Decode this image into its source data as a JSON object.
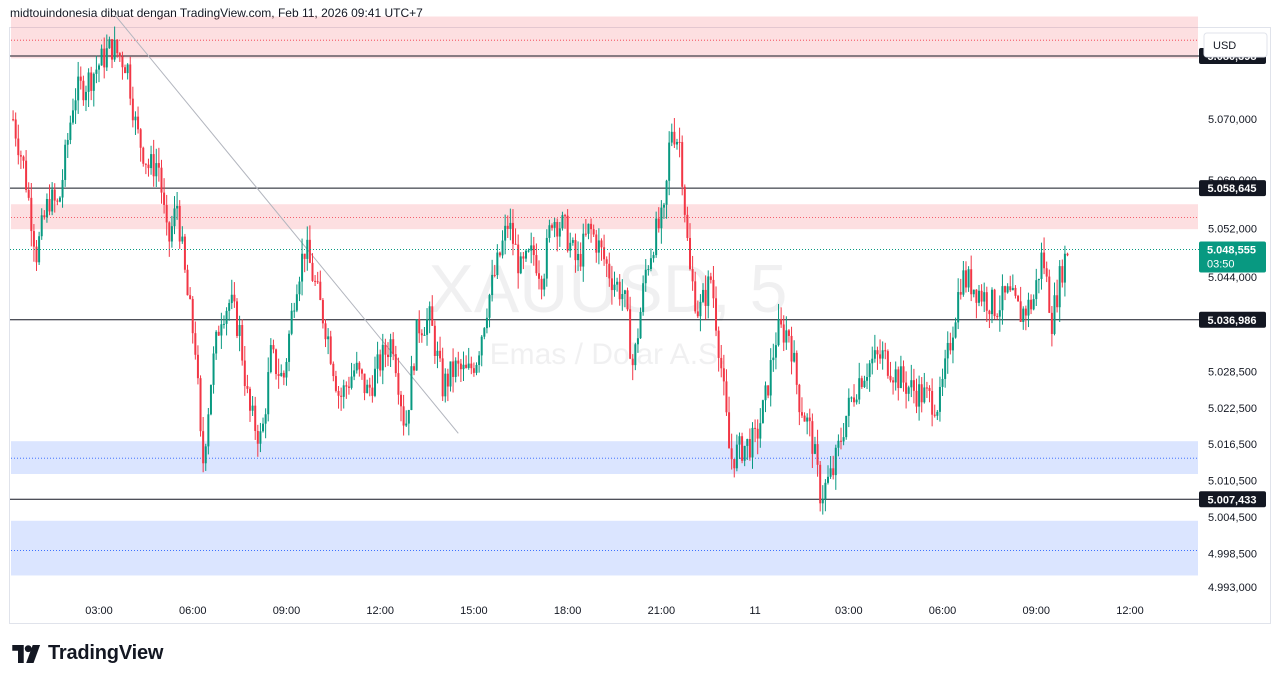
{
  "header": {
    "caption": "midtouindonesia dibuat dengan TradingView.com, Feb 11, 2026 09:41 UTC+7"
  },
  "watermark": {
    "symbol": "XAUUSD, 5",
    "description": "Emas / Dolar A.S."
  },
  "brand": {
    "name": "TradingView"
  },
  "colors": {
    "up": "#089981",
    "down": "#f23645",
    "supply_zone": "#f23645",
    "demand_zone": "#2962ff",
    "current_price_bg": "#089981"
  },
  "chart_data": {
    "type": "candlestick",
    "symbol": "XAUUSD",
    "timeframe": "5",
    "currency": "USD",
    "y_range": [
      4990.0,
      5093.0
    ],
    "y_ticks": [
      {
        "value": 5070.0,
        "label": "5.070,000"
      },
      {
        "value": 5060.0,
        "label": "5.060,000"
      },
      {
        "value": 5052.0,
        "label": "5.052,000"
      },
      {
        "value": 5044.0,
        "label": "5.044,000"
      },
      {
        "value": 5028.5,
        "label": "5.028,500"
      },
      {
        "value": 5022.5,
        "label": "5.022,500"
      },
      {
        "value": 5016.5,
        "label": "5.016,500"
      },
      {
        "value": 5010.5,
        "label": "5.010,500"
      },
      {
        "value": 5004.5,
        "label": "5.004,500"
      },
      {
        "value": 4998.5,
        "label": "4.998,500"
      },
      {
        "value": 4993.0,
        "label": "4.993,000"
      }
    ],
    "x_ticks": [
      {
        "hour": 3,
        "label": "03:00"
      },
      {
        "hour": 6,
        "label": "06:00"
      },
      {
        "hour": 9,
        "label": "09:00"
      },
      {
        "hour": 12,
        "label": "12:00"
      },
      {
        "hour": 15,
        "label": "15:00"
      },
      {
        "hour": 18,
        "label": "18:00"
      },
      {
        "hour": 21,
        "label": "21:00"
      },
      {
        "hour": 24,
        "label": "11"
      },
      {
        "hour": 27,
        "label": "03:00"
      },
      {
        "hour": 30,
        "label": "06:00"
      },
      {
        "hour": 33,
        "label": "09:00"
      },
      {
        "hour": 36,
        "label": "12:00"
      }
    ],
    "x_range_hours": [
      0.25,
      36.5
    ],
    "horizontal_levels": [
      {
        "value": 5080.398,
        "label": "5.080,398"
      },
      {
        "value": 5058.645,
        "label": "5.058,645"
      },
      {
        "value": 5036.986,
        "label": "5.036,986"
      },
      {
        "value": 5007.433,
        "label": "5.007,433"
      }
    ],
    "current_price": {
      "value": 5048.555,
      "label": "5.048,555",
      "countdown": "03:50"
    },
    "zones": [
      {
        "kind": "supply",
        "from": 5080.0,
        "to": 5086.9,
        "mid": 5083.0
      },
      {
        "kind": "supply",
        "from": 5051.9,
        "to": 5056.0,
        "mid": 5053.8
      },
      {
        "kind": "demand",
        "from": 5011.6,
        "to": 5017.0,
        "mid": 5014.2
      },
      {
        "kind": "demand",
        "from": 4994.9,
        "to": 5003.9,
        "mid": 4999.0
      }
    ],
    "trendline": {
      "from": {
        "hour": 3.5,
        "price": 5087.2
      },
      "to": {
        "hour": 14.5,
        "price": 5018.3
      }
    },
    "path": [
      [
        0.25,
        5070.0
      ],
      [
        0.6,
        5062.0
      ],
      [
        1.0,
        5048.0
      ],
      [
        1.4,
        5057.0
      ],
      [
        1.7,
        5055.5
      ],
      [
        2.2,
        5074.0
      ],
      [
        2.6,
        5076.0
      ],
      [
        3.0,
        5079.0
      ],
      [
        3.4,
        5082.0
      ],
      [
        3.9,
        5079.0
      ],
      [
        4.2,
        5068.0
      ],
      [
        4.6,
        5062.0
      ],
      [
        4.9,
        5063.0
      ],
      [
        5.2,
        5049.0
      ],
      [
        5.5,
        5056.0
      ],
      [
        5.8,
        5042.0
      ],
      [
        6.1,
        5032.0
      ],
      [
        6.3,
        5012.0
      ],
      [
        6.6,
        5028.0
      ],
      [
        6.9,
        5038.0
      ],
      [
        7.2,
        5040.0
      ],
      [
        7.5,
        5035.0
      ],
      [
        7.8,
        5022.0
      ],
      [
        8.2,
        5017.0
      ],
      [
        8.5,
        5031.0
      ],
      [
        8.9,
        5027.0
      ],
      [
        9.3,
        5043.0
      ],
      [
        9.6,
        5049.0
      ],
      [
        10.0,
        5041.0
      ],
      [
        10.3,
        5035.0
      ],
      [
        10.7,
        5024.0
      ],
      [
        11.2,
        5029.0
      ],
      [
        11.6,
        5025.0
      ],
      [
        12.0,
        5030.0
      ],
      [
        12.4,
        5034.0
      ],
      [
        12.8,
        5019.0
      ],
      [
        13.2,
        5036.0
      ],
      [
        13.6,
        5037.0
      ],
      [
        14.0,
        5026.0
      ],
      [
        14.4,
        5029.0
      ],
      [
        14.8,
        5028.0
      ],
      [
        15.1,
        5031.0
      ],
      [
        15.4,
        5039.0
      ],
      [
        15.8,
        5047.0
      ],
      [
        16.1,
        5053.0
      ],
      [
        16.5,
        5045.0
      ],
      [
        16.9,
        5048.0
      ],
      [
        17.2,
        5044.0
      ],
      [
        17.5,
        5054.0
      ],
      [
        17.9,
        5052.0
      ],
      [
        18.3,
        5046.0
      ],
      [
        18.7,
        5052.0
      ],
      [
        19.0,
        5049.0
      ],
      [
        19.4,
        5044.0
      ],
      [
        19.8,
        5041.0
      ],
      [
        20.1,
        5029.0
      ],
      [
        20.5,
        5045.0
      ],
      [
        20.8,
        5051.0
      ],
      [
        21.1,
        5054.0
      ],
      [
        21.3,
        5069.0
      ],
      [
        21.6,
        5066.0
      ],
      [
        21.9,
        5045.0
      ],
      [
        22.2,
        5038.0
      ],
      [
        22.6,
        5044.0
      ],
      [
        22.9,
        5030.0
      ],
      [
        23.2,
        5014.0
      ],
      [
        23.6,
        5016.0
      ],
      [
        24.0,
        5017.0
      ],
      [
        24.3,
        5023.0
      ],
      [
        24.7,
        5035.0
      ],
      [
        25.1,
        5035.0
      ],
      [
        25.4,
        5024.0
      ],
      [
        25.8,
        5018.0
      ],
      [
        26.1,
        5008.0
      ],
      [
        26.5,
        5012.0
      ],
      [
        26.9,
        5021.0
      ],
      [
        27.3,
        5027.0
      ],
      [
        27.7,
        5030.0
      ],
      [
        28.1,
        5031.0
      ],
      [
        28.5,
        5028.0
      ],
      [
        28.9,
        5026.0
      ],
      [
        29.2,
        5025.0
      ],
      [
        29.6,
        5024.0
      ],
      [
        29.9,
        5023.0
      ],
      [
        30.3,
        5035.0
      ],
      [
        30.6,
        5044.0
      ],
      [
        30.9,
        5043.0
      ],
      [
        31.3,
        5041.0
      ],
      [
        31.7,
        5039.0
      ],
      [
        32.1,
        5041.0
      ],
      [
        32.5,
        5038.0
      ],
      [
        32.9,
        5040.0
      ],
      [
        33.2,
        5048.0
      ],
      [
        33.5,
        5037.0
      ],
      [
        33.8,
        5045.0
      ],
      [
        34.0,
        5048.555
      ]
    ]
  }
}
